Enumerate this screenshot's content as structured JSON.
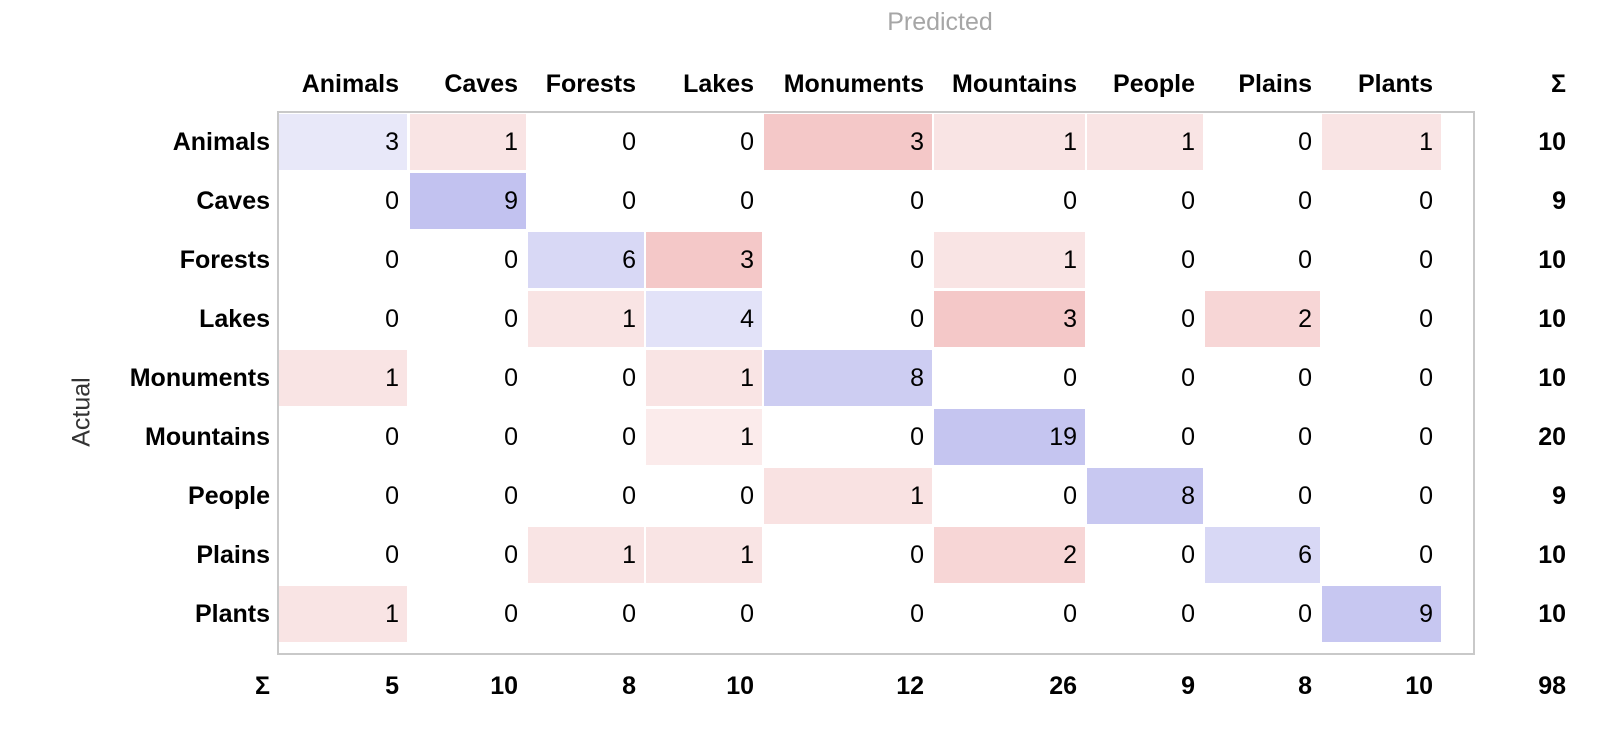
{
  "axes": {
    "predicted_label": "Predicted",
    "actual_label": "Actual",
    "sum_symbol": "Σ"
  },
  "classes": [
    "Animals",
    "Caves",
    "Forests",
    "Lakes",
    "Monuments",
    "Mountains",
    "People",
    "Plains",
    "Plants"
  ],
  "matrix": [
    [
      3,
      1,
      0,
      0,
      3,
      1,
      1,
      0,
      1
    ],
    [
      0,
      9,
      0,
      0,
      0,
      0,
      0,
      0,
      0
    ],
    [
      0,
      0,
      6,
      3,
      0,
      1,
      0,
      0,
      0
    ],
    [
      0,
      0,
      1,
      4,
      0,
      3,
      0,
      2,
      0
    ],
    [
      1,
      0,
      0,
      1,
      8,
      0,
      0,
      0,
      0
    ],
    [
      0,
      0,
      0,
      1,
      0,
      19,
      0,
      0,
      0
    ],
    [
      0,
      0,
      0,
      0,
      1,
      0,
      8,
      0,
      0
    ],
    [
      0,
      0,
      1,
      1,
      0,
      2,
      0,
      6,
      0
    ],
    [
      1,
      0,
      0,
      0,
      0,
      0,
      0,
      0,
      9
    ]
  ],
  "row_sums": [
    "10",
    "9",
    "10",
    "10",
    "10",
    "20",
    "9",
    "10",
    "10"
  ],
  "col_sums": [
    "5",
    "10",
    "8",
    "10",
    "12",
    "26",
    "9",
    "8",
    "10"
  ],
  "total": "98",
  "colors": {
    "correct_base": "#7777dd",
    "error_base": "#d94444",
    "frame": "#c9c9c9",
    "predicted_text": "#a6a6a6"
  }
}
